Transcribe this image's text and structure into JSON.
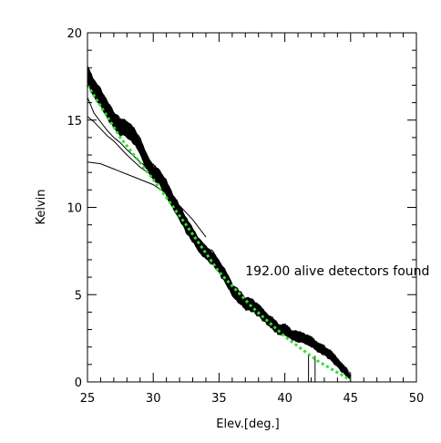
{
  "chart_data": {
    "type": "line",
    "title": "",
    "xlabel": "Elev.[deg.]",
    "ylabel": "Kelvin",
    "xlim": [
      25,
      50
    ],
    "ylim": [
      0,
      20
    ],
    "x_ticks": [
      25,
      30,
      35,
      40,
      45,
      50
    ],
    "y_ticks": [
      0,
      5,
      10,
      15,
      20
    ],
    "x_tick_labels": [
      "25",
      "30",
      "35",
      "40",
      "45",
      "50"
    ],
    "y_tick_labels": [
      "0",
      "5",
      "10",
      "15",
      "20"
    ],
    "x_minor_step": 1,
    "y_minor_step": 1,
    "grid": false,
    "annotation": {
      "text": "192.00 alive detectors found",
      "x": 37.0,
      "y": 6.1
    },
    "colors": {
      "detectors": "#000000",
      "fit": "#33dd33",
      "axes": "#000000"
    },
    "series": [
      {
        "role": "detector-bundle",
        "count": 192,
        "spread": 0.4,
        "x": [
          25.0,
          25.5,
          26.0,
          26.5,
          27.0,
          27.5,
          28.0,
          28.5,
          29.0,
          29.5,
          30.0,
          30.5,
          31.0,
          31.5,
          32.0,
          32.5,
          33.0,
          33.5,
          34.0,
          34.5,
          35.0,
          35.5,
          36.0,
          36.5,
          37.0,
          37.5,
          38.0,
          38.5,
          39.0,
          39.5,
          40.0,
          40.5,
          41.0,
          41.5,
          42.0,
          42.5,
          43.0,
          43.5,
          44.0,
          44.5,
          45.0
        ],
        "y": [
          17.6,
          16.8,
          16.3,
          15.6,
          15.0,
          14.6,
          14.5,
          14.1,
          13.5,
          12.6,
          12.0,
          11.7,
          11.1,
          10.3,
          9.7,
          9.0,
          8.4,
          7.8,
          7.4,
          7.1,
          6.6,
          6.0,
          5.3,
          4.9,
          4.5,
          4.4,
          4.1,
          3.7,
          3.4,
          3.0,
          3.0,
          2.7,
          2.6,
          2.5,
          2.3,
          2.0,
          1.8,
          1.5,
          1.1,
          0.7,
          0.3
        ]
      },
      {
        "role": "outlier",
        "x": [
          25.0,
          26.0,
          27.0,
          28.0,
          29.0,
          30.0,
          31.0,
          32.0,
          33.0,
          34.0
        ],
        "y": [
          12.6,
          12.5,
          12.2,
          11.9,
          11.6,
          11.3,
          10.8,
          10.1,
          9.3,
          8.3
        ]
      },
      {
        "role": "outlier",
        "x": [
          25.0,
          25.5,
          26.0,
          26.5,
          27.0,
          27.5,
          28.0,
          29.0,
          30.0,
          31.0
        ],
        "y": [
          15.2,
          14.9,
          14.5,
          14.1,
          13.8,
          13.4,
          13.0,
          12.3,
          11.8,
          11.3
        ]
      },
      {
        "role": "outlier",
        "x": [
          25.0,
          25.5,
          26.0,
          26.5,
          27.0,
          27.5,
          28.0,
          29.0,
          30.0
        ],
        "y": [
          16.3,
          15.4,
          14.9,
          14.4,
          14.0,
          13.7,
          13.3,
          12.6,
          12.0
        ]
      },
      {
        "role": "spike",
        "x": [
          41.8,
          41.8
        ],
        "y": [
          0.0,
          1.6
        ]
      },
      {
        "role": "spike",
        "x": [
          42.3,
          42.3
        ],
        "y": [
          0.0,
          1.5
        ]
      },
      {
        "role": "fit",
        "x": [
          25.0,
          27.5,
          30.0,
          32.5,
          35.0,
          37.5,
          40.0,
          42.5,
          45.0
        ],
        "y": [
          17.0,
          14.0,
          11.6,
          9.0,
          6.3,
          4.3,
          2.6,
          1.2,
          0.1
        ]
      }
    ]
  }
}
